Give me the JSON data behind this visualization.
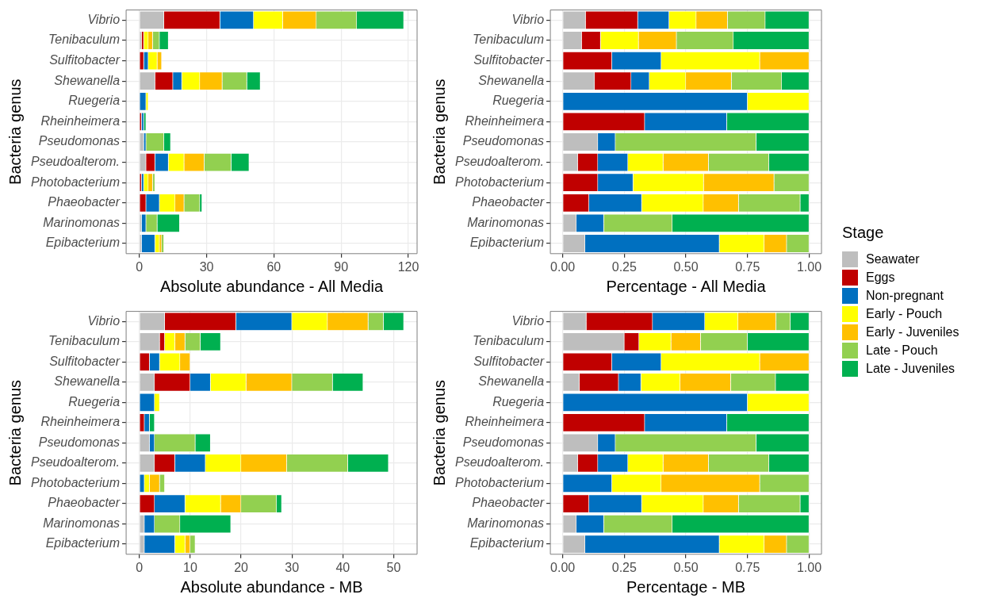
{
  "chart_data": [
    {
      "type": "bar",
      "orientation": "horizontal",
      "stacked": true,
      "grid": true,
      "legend": "right",
      "legend_title": "Stage",
      "xlabel": "Absolute abundance - All Media",
      "ylabel": "Bacteria genus",
      "xlim": [
        -5.9,
        123.9
      ],
      "xticks": [
        0,
        30,
        60,
        90,
        120
      ],
      "categories": [
        "Vibrio",
        "Tenibaculum",
        "Sulfitobacter",
        "Shewanella",
        "Ruegeria",
        "Rheinheimera",
        "Pseudomonas",
        "Pseudoalterom.",
        "Photobacterium",
        "Phaeobacter",
        "Marinomonas",
        "Epibacterium"
      ],
      "series": [
        {
          "name": "Seawater",
          "color": "#bebebe",
          "values": [
            11,
            1,
            0,
            7,
            0,
            0,
            2,
            3,
            0,
            0,
            1,
            1
          ]
        },
        {
          "name": "Eggs",
          "color": "#c00000",
          "values": [
            25,
            1,
            2,
            8,
            0,
            1,
            0,
            4,
            1,
            3,
            0,
            0
          ]
        },
        {
          "name": "Non-pregnant",
          "color": "#0070c0",
          "values": [
            15,
            0,
            2,
            4,
            3,
            1,
            1,
            6,
            1,
            6,
            2,
            6
          ]
        },
        {
          "name": "Early - Pouch",
          "color": "#ffff00",
          "values": [
            13,
            2,
            4,
            8,
            1,
            0,
            0,
            7,
            2,
            7,
            0,
            2
          ]
        },
        {
          "name": "Early - Juveniles",
          "color": "#ffc000",
          "values": [
            15,
            2,
            2,
            10,
            0,
            0,
            0,
            9,
            2,
            4,
            0,
            1
          ]
        },
        {
          "name": "Late - Pouch",
          "color": "#92d050",
          "values": [
            18,
            3,
            0,
            11,
            0,
            0,
            8,
            12,
            1,
            7,
            5,
            1
          ]
        },
        {
          "name": "Late - Juveniles",
          "color": "#00b050",
          "values": [
            21,
            4,
            0,
            6,
            0,
            1,
            3,
            8,
            0,
            1,
            10,
            0
          ]
        }
      ]
    },
    {
      "type": "bar",
      "orientation": "horizontal",
      "stacked": true,
      "grid": true,
      "legend": false,
      "xlabel": "Percentage - All Media",
      "ylabel": "Bacteria genus",
      "xlim": [
        -0.05,
        1.05
      ],
      "xticks": [
        {
          "value": 0,
          "label": "0.00"
        },
        {
          "value": 0.25,
          "label": "0.25"
        },
        {
          "value": 0.5,
          "label": "0.50"
        },
        {
          "value": 0.75,
          "label": "0.75"
        },
        {
          "value": 1,
          "label": "1.00"
        }
      ],
      "categories": [
        "Vibrio",
        "Tenibaculum",
        "Sulfitobacter",
        "Shewanella",
        "Ruegeria",
        "Rheinheimera",
        "Pseudomonas",
        "Pseudoalterom.",
        "Photobacterium",
        "Phaeobacter",
        "Marinomonas",
        "Epibacterium"
      ],
      "series": [
        {
          "color": "#bebebe",
          "values": [
            0.093,
            0.077,
            0,
            0.13,
            0,
            0,
            0.143,
            0.061,
            0,
            0,
            0.056,
            0.091
          ]
        },
        {
          "color": "#c00000",
          "values": [
            0.212,
            0.077,
            0.2,
            0.148,
            0,
            0.333,
            0,
            0.082,
            0.143,
            0.107,
            0,
            0
          ]
        },
        {
          "color": "#0070c0",
          "values": [
            0.127,
            0,
            0.2,
            0.074,
            0.75,
            0.333,
            0.071,
            0.122,
            0.143,
            0.214,
            0.111,
            0.545
          ]
        },
        {
          "color": "#ffff00",
          "values": [
            0.11,
            0.154,
            0.4,
            0.148,
            0.25,
            0,
            0,
            0.143,
            0.286,
            0.25,
            0,
            0.182
          ]
        },
        {
          "color": "#ffc000",
          "values": [
            0.127,
            0.154,
            0.2,
            0.185,
            0,
            0,
            0,
            0.184,
            0.286,
            0.143,
            0,
            0.091
          ]
        },
        {
          "color": "#92d050",
          "values": [
            0.153,
            0.231,
            0,
            0.204,
            0,
            0,
            0.571,
            0.245,
            0.142,
            0.25,
            0.278,
            0.091
          ]
        },
        {
          "color": "#00b050",
          "values": [
            0.178,
            0.307,
            0,
            0.111,
            0,
            0.334,
            0.215,
            0.163,
            0,
            0.036,
            0.555,
            0
          ]
        }
      ]
    },
    {
      "type": "bar",
      "orientation": "horizontal",
      "stacked": true,
      "grid": true,
      "legend": false,
      "xlabel": "Absolute abundance - MB",
      "ylabel": "Bacteria genus",
      "xlim": [
        -2.6,
        54.6
      ],
      "xticks": [
        0,
        10,
        20,
        30,
        40,
        50
      ],
      "categories": [
        "Vibrio",
        "Tenibaculum",
        "Sulfitobacter",
        "Shewanella",
        "Ruegeria",
        "Rheinheimera",
        "Pseudomonas",
        "Pseudoalterom.",
        "Photobacterium",
        "Phaeobacter",
        "Marinomonas",
        "Epibacterium"
      ],
      "series": [
        {
          "color": "#bebebe",
          "values": [
            5,
            4,
            0,
            3,
            0,
            0,
            2,
            3,
            0,
            0,
            1,
            1
          ]
        },
        {
          "color": "#c00000",
          "values": [
            14,
            1,
            2,
            7,
            0,
            1,
            0,
            4,
            0,
            3,
            0,
            0
          ]
        },
        {
          "color": "#0070c0",
          "values": [
            11,
            0,
            2,
            4,
            3,
            1,
            1,
            6,
            1,
            6,
            2,
            6
          ]
        },
        {
          "color": "#ffff00",
          "values": [
            7,
            2,
            4,
            7,
            1,
            0,
            0,
            7,
            1,
            7,
            0,
            2
          ]
        },
        {
          "color": "#ffc000",
          "values": [
            8,
            2,
            2,
            9,
            0,
            0,
            0,
            9,
            2,
            4,
            0,
            1
          ]
        },
        {
          "color": "#92d050",
          "values": [
            3,
            3,
            0,
            8,
            0,
            0,
            8,
            12,
            1,
            7,
            5,
            1
          ]
        },
        {
          "color": "#00b050",
          "values": [
            4,
            4,
            0,
            6,
            0,
            1,
            3,
            8,
            0,
            1,
            10,
            0
          ]
        }
      ]
    },
    {
      "type": "bar",
      "orientation": "horizontal",
      "stacked": true,
      "grid": true,
      "legend": false,
      "xlabel": "Percentage - MB",
      "ylabel": "Bacteria genus",
      "xlim": [
        -0.05,
        1.05
      ],
      "xticks": [
        {
          "value": 0,
          "label": "0.00"
        },
        {
          "value": 0.25,
          "label": "0.25"
        },
        {
          "value": 0.5,
          "label": "0.50"
        },
        {
          "value": 0.75,
          "label": "0.75"
        },
        {
          "value": 1,
          "label": "1.00"
        }
      ],
      "categories": [
        "Vibrio",
        "Tenibaculum",
        "Sulfitobacter",
        "Shewanella",
        "Ruegeria",
        "Rheinheimera",
        "Pseudomonas",
        "Pseudoalterom.",
        "Photobacterium",
        "Phaeobacter",
        "Marinomonas",
        "Epibacterium"
      ],
      "series": [
        {
          "color": "#bebebe",
          "values": [
            0.096,
            0.25,
            0,
            0.068,
            0,
            0,
            0.143,
            0.061,
            0,
            0,
            0.056,
            0.091
          ]
        },
        {
          "color": "#c00000",
          "values": [
            0.269,
            0.06,
            0.2,
            0.159,
            0,
            0.333,
            0,
            0.082,
            0,
            0.107,
            0,
            0
          ]
        },
        {
          "color": "#0070c0",
          "values": [
            0.212,
            0,
            0.2,
            0.091,
            0.75,
            0.333,
            0.071,
            0.122,
            0.2,
            0.214,
            0.111,
            0.545
          ]
        },
        {
          "color": "#ffff00",
          "values": [
            0.135,
            0.13,
            0.4,
            0.159,
            0.25,
            0,
            0,
            0.143,
            0.2,
            0.25,
            0,
            0.182
          ]
        },
        {
          "color": "#ffc000",
          "values": [
            0.154,
            0.12,
            0.2,
            0.205,
            0,
            0,
            0,
            0.184,
            0.4,
            0.143,
            0,
            0.091
          ]
        },
        {
          "color": "#92d050",
          "values": [
            0.058,
            0.19,
            0,
            0.182,
            0,
            0,
            0.571,
            0.245,
            0.2,
            0.25,
            0.278,
            0.091
          ]
        },
        {
          "color": "#00b050",
          "values": [
            0.076,
            0.25,
            0,
            0.136,
            0,
            0.334,
            0.215,
            0.163,
            0,
            0.036,
            0.555,
            0
          ]
        }
      ]
    }
  ]
}
